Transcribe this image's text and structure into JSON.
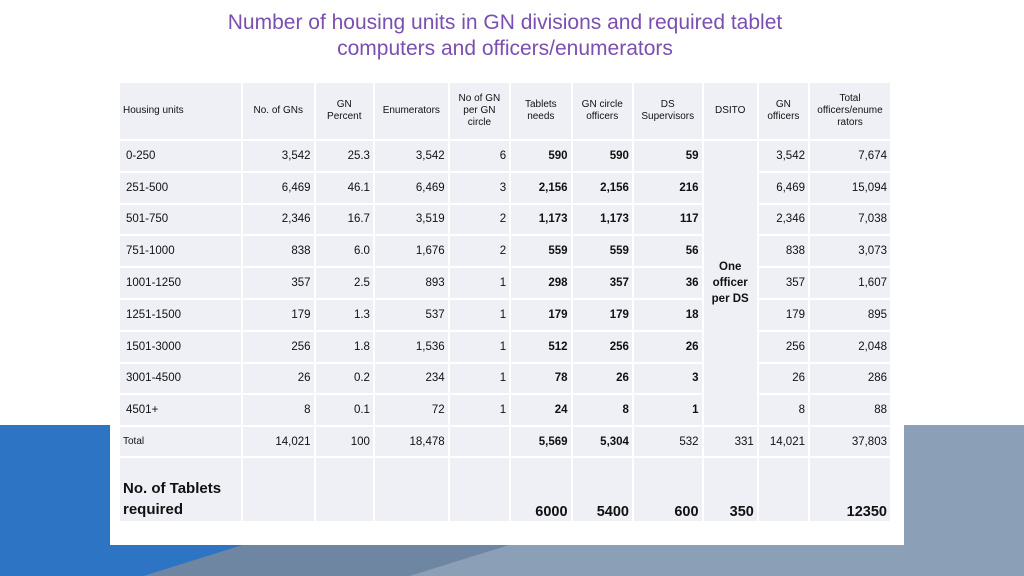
{
  "title_line1": "Number of housing units in GN divisions and required tablet",
  "title_line2": "computers and officers/enumerators",
  "headers": [
    "Housing units",
    "No. of GNs",
    "GN Percent",
    "Enumerators",
    "No of GN per GN circle",
    "Tablets needs",
    "GN circle officers",
    "DS Supervisors",
    "DSITO",
    "GN officers",
    "Total officers/enume rators"
  ],
  "rows": [
    {
      "units": "0-250",
      "gns": "3,542",
      "pct": "25.3",
      "enum": "3,542",
      "per_circle": "6",
      "tablets": "590",
      "circle_off": "590",
      "ds_sup": "59",
      "gn_off": "3,542",
      "total": "7,674"
    },
    {
      "units": "251-500",
      "gns": "6,469",
      "pct": "46.1",
      "enum": "6,469",
      "per_circle": "3",
      "tablets": "2,156",
      "circle_off": "2,156",
      "ds_sup": "216",
      "gn_off": "6,469",
      "total": "15,094"
    },
    {
      "units": "501-750",
      "gns": "2,346",
      "pct": "16.7",
      "enum": "3,519",
      "per_circle": "2",
      "tablets": "1,173",
      "circle_off": "1,173",
      "ds_sup": "117",
      "gn_off": "2,346",
      "total": "7,038"
    },
    {
      "units": "751-1000",
      "gns": "838",
      "pct": "6.0",
      "enum": "1,676",
      "per_circle": "2",
      "tablets": "559",
      "circle_off": "559",
      "ds_sup": "56",
      "gn_off": "838",
      "total": "3,073"
    },
    {
      "units": "1001-1250",
      "gns": "357",
      "pct": "2.5",
      "enum": "893",
      "per_circle": "1",
      "tablets": "298",
      "circle_off": "357",
      "ds_sup": "36",
      "gn_off": "357",
      "total": "1,607"
    },
    {
      "units": "1251-1500",
      "gns": "179",
      "pct": "1.3",
      "enum": "537",
      "per_circle": "1",
      "tablets": "179",
      "circle_off": "179",
      "ds_sup": "18",
      "gn_off": "179",
      "total": "895"
    },
    {
      "units": "1501-3000",
      "gns": "256",
      "pct": "1.8",
      "enum": "1,536",
      "per_circle": "1",
      "tablets": "512",
      "circle_off": "256",
      "ds_sup": "26",
      "gn_off": "256",
      "total": "2,048"
    },
    {
      "units": "3001-4500",
      "gns": "26",
      "pct": "0.2",
      "enum": "234",
      "per_circle": "1",
      "tablets": "78",
      "circle_off": "26",
      "ds_sup": "3",
      "gn_off": "26",
      "total": "286"
    },
    {
      "units": "4501+",
      "gns": "8",
      "pct": "0.1",
      "enum": "72",
      "per_circle": "1",
      "tablets": "24",
      "circle_off": "8",
      "ds_sup": "1",
      "gn_off": "8",
      "total": "88"
    }
  ],
  "dsito_note": "One officer per DS",
  "total_row": {
    "label": "Total",
    "gns": "14,021",
    "pct": "100",
    "enum": "18,478",
    "tablets": "5,569",
    "circle_off": "5,304",
    "ds_sup": "532",
    "dsito": "331",
    "gn_off": "14,021",
    "total": "37,803"
  },
  "tablets_row": {
    "label": "No. of Tablets required",
    "tablets": "6000",
    "circle_off": "5400",
    "ds_sup": "600",
    "dsito": "350",
    "total": "12350"
  }
}
